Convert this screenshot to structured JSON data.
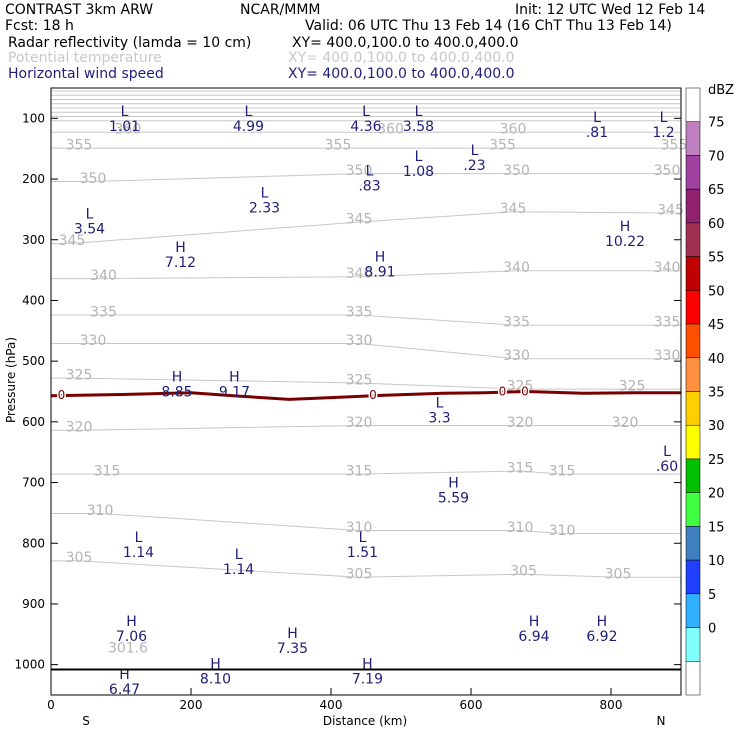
{
  "header": {
    "left1": "CONTRAST  3km ARW",
    "center1": "NCAR/MMM",
    "right1": "Init: 12 UTC Wed 12 Feb 14",
    "left2": "Fcst:    18 h",
    "right2": "Valid: 06 UTC Thu 13 Feb 14 (16 ChT Thu 13 Feb 14)"
  },
  "fields": [
    {
      "name": "Radar reflectivity (lamda = 10 cm)",
      "xy": "XY= 400.0,100.0 to 400.0,400.0",
      "color": "#000000"
    },
    {
      "name": "Potential temperature",
      "xy": "XY= 400.0,100.0 to 400.0,400.0",
      "color": "#c8c8c8"
    },
    {
      "name": "Horizontal wind speed",
      "xy": "XY= 400.0,100.0 to 400.0,400.0",
      "color": "#1e1e78"
    }
  ],
  "chart_data": {
    "type": "contour-cross-section",
    "xlabel": "Distance (km)",
    "ylabel": "Pressure (hPa)",
    "x_ticks": [
      "0",
      "200",
      "400",
      "600",
      "800"
    ],
    "x_tick_values": [
      0,
      200,
      400,
      600,
      800
    ],
    "xlim": [
      0,
      900
    ],
    "y_ticks": [
      "100",
      "200",
      "300",
      "400",
      "500",
      "600",
      "700",
      "800",
      "900",
      "1000"
    ],
    "y_tick_values": [
      100,
      200,
      300,
      400,
      500,
      600,
      700,
      800,
      900,
      1000
    ],
    "ylim": [
      50,
      1050
    ],
    "ends": [
      "S",
      "N"
    ],
    "theta_labels": [
      {
        "text": "360",
        "x": 110,
        "p": 117
      },
      {
        "text": "360",
        "x": 485,
        "p": 117
      },
      {
        "text": "360",
        "x": 660,
        "p": 117
      },
      {
        "text": "355",
        "x": 40,
        "p": 143
      },
      {
        "text": "355",
        "x": 410,
        "p": 143
      },
      {
        "text": "355",
        "x": 645,
        "p": 143
      },
      {
        "text": "355",
        "x": 890,
        "p": 143
      },
      {
        "text": "350",
        "x": 60,
        "p": 198
      },
      {
        "text": "350",
        "x": 440,
        "p": 185
      },
      {
        "text": "350",
        "x": 665,
        "p": 185
      },
      {
        "text": "350",
        "x": 880,
        "p": 185
      },
      {
        "text": "345",
        "x": 30,
        "p": 300
      },
      {
        "text": "345",
        "x": 440,
        "p": 265
      },
      {
        "text": "345",
        "x": 660,
        "p": 248
      },
      {
        "text": "345",
        "x": 885,
        "p": 250
      },
      {
        "text": "340",
        "x": 75,
        "p": 358
      },
      {
        "text": "340",
        "x": 440,
        "p": 355
      },
      {
        "text": "340",
        "x": 665,
        "p": 345
      },
      {
        "text": "340",
        "x": 880,
        "p": 345
      },
      {
        "text": "335",
        "x": 75,
        "p": 418
      },
      {
        "text": "335",
        "x": 440,
        "p": 418
      },
      {
        "text": "335",
        "x": 665,
        "p": 435
      },
      {
        "text": "335",
        "x": 880,
        "p": 435
      },
      {
        "text": "330",
        "x": 60,
        "p": 465
      },
      {
        "text": "330",
        "x": 440,
        "p": 465
      },
      {
        "text": "330",
        "x": 665,
        "p": 490
      },
      {
        "text": "330",
        "x": 880,
        "p": 490
      },
      {
        "text": "325",
        "x": 40,
        "p": 522
      },
      {
        "text": "325",
        "x": 440,
        "p": 530
      },
      {
        "text": "325",
        "x": 670,
        "p": 540
      },
      {
        "text": "325",
        "x": 830,
        "p": 540
      },
      {
        "text": "320",
        "x": 40,
        "p": 608
      },
      {
        "text": "320",
        "x": 440,
        "p": 600
      },
      {
        "text": "320",
        "x": 670,
        "p": 600
      },
      {
        "text": "320",
        "x": 820,
        "p": 600
      },
      {
        "text": "315",
        "x": 80,
        "p": 680
      },
      {
        "text": "315",
        "x": 440,
        "p": 680
      },
      {
        "text": "315",
        "x": 670,
        "p": 675
      },
      {
        "text": "315",
        "x": 730,
        "p": 680
      },
      {
        "text": "310",
        "x": 70,
        "p": 745
      },
      {
        "text": "310",
        "x": 440,
        "p": 773
      },
      {
        "text": "310",
        "x": 670,
        "p": 773
      },
      {
        "text": "310",
        "x": 730,
        "p": 778
      },
      {
        "text": "305",
        "x": 40,
        "p": 823
      },
      {
        "text": "305",
        "x": 440,
        "p": 850
      },
      {
        "text": "305",
        "x": 675,
        "p": 845
      },
      {
        "text": "305",
        "x": 810,
        "p": 850
      },
      {
        "text": "301.6",
        "x": 110,
        "p": 972
      }
    ],
    "highs_lows": [
      {
        "kind": "L",
        "value": "1.01",
        "x": 105,
        "p": 88
      },
      {
        "kind": "L",
        "value": "4.99",
        "x": 282,
        "p": 88
      },
      {
        "kind": "L",
        "value": "4.36",
        "x": 450,
        "p": 88
      },
      {
        "kind": "L",
        "value": "3.58",
        "x": 525,
        "p": 88
      },
      {
        "kind": "L",
        "value": ".81",
        "x": 780,
        "p": 98
      },
      {
        "kind": "L",
        "value": "1.2",
        "x": 875,
        "p": 98
      },
      {
        "kind": "L",
        "value": "1.08",
        "x": 525,
        "p": 162
      },
      {
        "kind": "L",
        "value": ".23",
        "x": 605,
        "p": 152
      },
      {
        "kind": "L",
        "value": ".83",
        "x": 455,
        "p": 186
      },
      {
        "kind": "L",
        "value": "2.33",
        "x": 305,
        "p": 222
      },
      {
        "kind": "L",
        "value": "3.54",
        "x": 55,
        "p": 257
      },
      {
        "kind": "H",
        "value": "7.12",
        "x": 185,
        "p": 312
      },
      {
        "kind": "H",
        "value": "8.91",
        "x": 470,
        "p": 328
      },
      {
        "kind": "H",
        "value": "10.22",
        "x": 820,
        "p": 277
      },
      {
        "kind": "H",
        "value": "8.85",
        "x": 180,
        "p": 525
      },
      {
        "kind": "H",
        "value": "9.17",
        "x": 262,
        "p": 525
      },
      {
        "kind": "L",
        "value": "3.3",
        "x": 555,
        "p": 568
      },
      {
        "kind": "L",
        "value": ".60",
        "x": 880,
        "p": 648
      },
      {
        "kind": "H",
        "value": "5.59",
        "x": 575,
        "p": 700
      },
      {
        "kind": "L",
        "value": "1.14",
        "x": 125,
        "p": 790
      },
      {
        "kind": "L",
        "value": "1.51",
        "x": 445,
        "p": 790
      },
      {
        "kind": "L",
        "value": "1.14",
        "x": 268,
        "p": 818
      },
      {
        "kind": "H",
        "value": "7.06",
        "x": 115,
        "p": 928
      },
      {
        "kind": "H",
        "value": "7.35",
        "x": 345,
        "p": 948
      },
      {
        "kind": "H",
        "value": "6.94",
        "x": 690,
        "p": 928
      },
      {
        "kind": "H",
        "value": "6.92",
        "x": 787,
        "p": 928
      },
      {
        "kind": "H",
        "value": "8.10",
        "x": 235,
        "p": 998
      },
      {
        "kind": "H",
        "value": "7.19",
        "x": 452,
        "p": 998
      },
      {
        "kind": "H",
        "value": "6.47",
        "x": 105,
        "p": 1015
      }
    ],
    "zero_line_labels": [
      {
        "text": "0",
        "x": 15,
        "p": 556
      },
      {
        "text": "0",
        "x": 460,
        "p": 556
      },
      {
        "text": "0",
        "x": 645,
        "p": 550
      },
      {
        "text": "0",
        "x": 677,
        "p": 550
      }
    ],
    "zero_line": {
      "color": "#780000",
      "points": [
        [
          0,
          557
        ],
        [
          100,
          555
        ],
        [
          200,
          552
        ],
        [
          260,
          557
        ],
        [
          340,
          563
        ],
        [
          400,
          560
        ],
        [
          460,
          557
        ],
        [
          560,
          553
        ],
        [
          620,
          552
        ],
        [
          680,
          550
        ],
        [
          760,
          553
        ],
        [
          840,
          552
        ],
        [
          900,
          552
        ]
      ]
    },
    "surface_line_p": 1008,
    "colorbar": {
      "title": "dBZ",
      "labels": [
        "75",
        "70",
        "65",
        "60",
        "55",
        "50",
        "45",
        "40",
        "35",
        "30",
        "25",
        "20",
        "15",
        "10",
        "5",
        "0"
      ],
      "colors": [
        "#ffffff",
        "#c080c0",
        "#a040a0",
        "#902070",
        "#a03050",
        "#c00000",
        "#ff0000",
        "#ff5000",
        "#ff9040",
        "#ffd000",
        "#ffff00",
        "#00c000",
        "#40ff40",
        "#4080c0",
        "#2040ff",
        "#30b0ff",
        "#80ffff",
        "#ffffff"
      ]
    }
  }
}
